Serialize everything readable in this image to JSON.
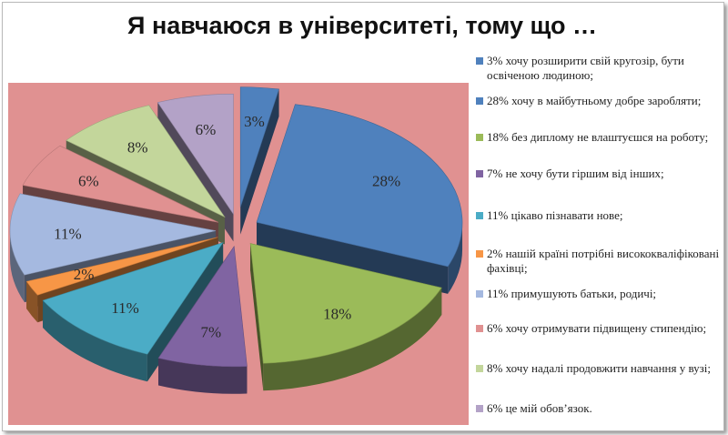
{
  "chart_data": {
    "type": "pie",
    "title": "Я навчаюся в університеті, тому що …",
    "slices": [
      {
        "label": "3% хочу розширити свій кругозір, бути освіченою людиною;",
        "value": 3,
        "value_label": "3%",
        "color": "#4f81bd"
      },
      {
        "label": "28% хочу в майбутньому добре заробляти;",
        "value": 28,
        "value_label": "28%",
        "color": "#4f81bd"
      },
      {
        "label": "18% без диплому не влаштуєшся на роботу;",
        "value": 18,
        "value_label": "18%",
        "color": "#9bbb59"
      },
      {
        "label": "7% не хочу бути гіршим від інших;",
        "value": 7,
        "value_label": "7%",
        "color": "#8064a2"
      },
      {
        "label": "11% цікаво пізнавати нове;",
        "value": 11,
        "value_label": "11%",
        "color": "#4bacc6"
      },
      {
        "label": "2% нашій країні потрібні висококваліфіковані фахівці;",
        "value": 2,
        "value_label": "2%",
        "color": "#f79646"
      },
      {
        "label": "11% примушують батьки, родичі;",
        "value": 11,
        "value_label": "11%",
        "color": "#a5b9e0"
      },
      {
        "label": "6% хочу отримувати підвищену стипендію;",
        "value": 6,
        "value_label": "6%",
        "color": "#e09191"
      },
      {
        "label": "8% хочу надалі продовжити навчання у вузі;",
        "value": 8,
        "value_label": "8%",
        "color": "#c3d69b"
      },
      {
        "label": "6% це мій обов’язок.",
        "value": 6,
        "value_label": "6%",
        "color": "#b3a2c7"
      }
    ],
    "legend_position": "right",
    "exploded": true,
    "style": "3d"
  },
  "plot_background": "#e09191"
}
